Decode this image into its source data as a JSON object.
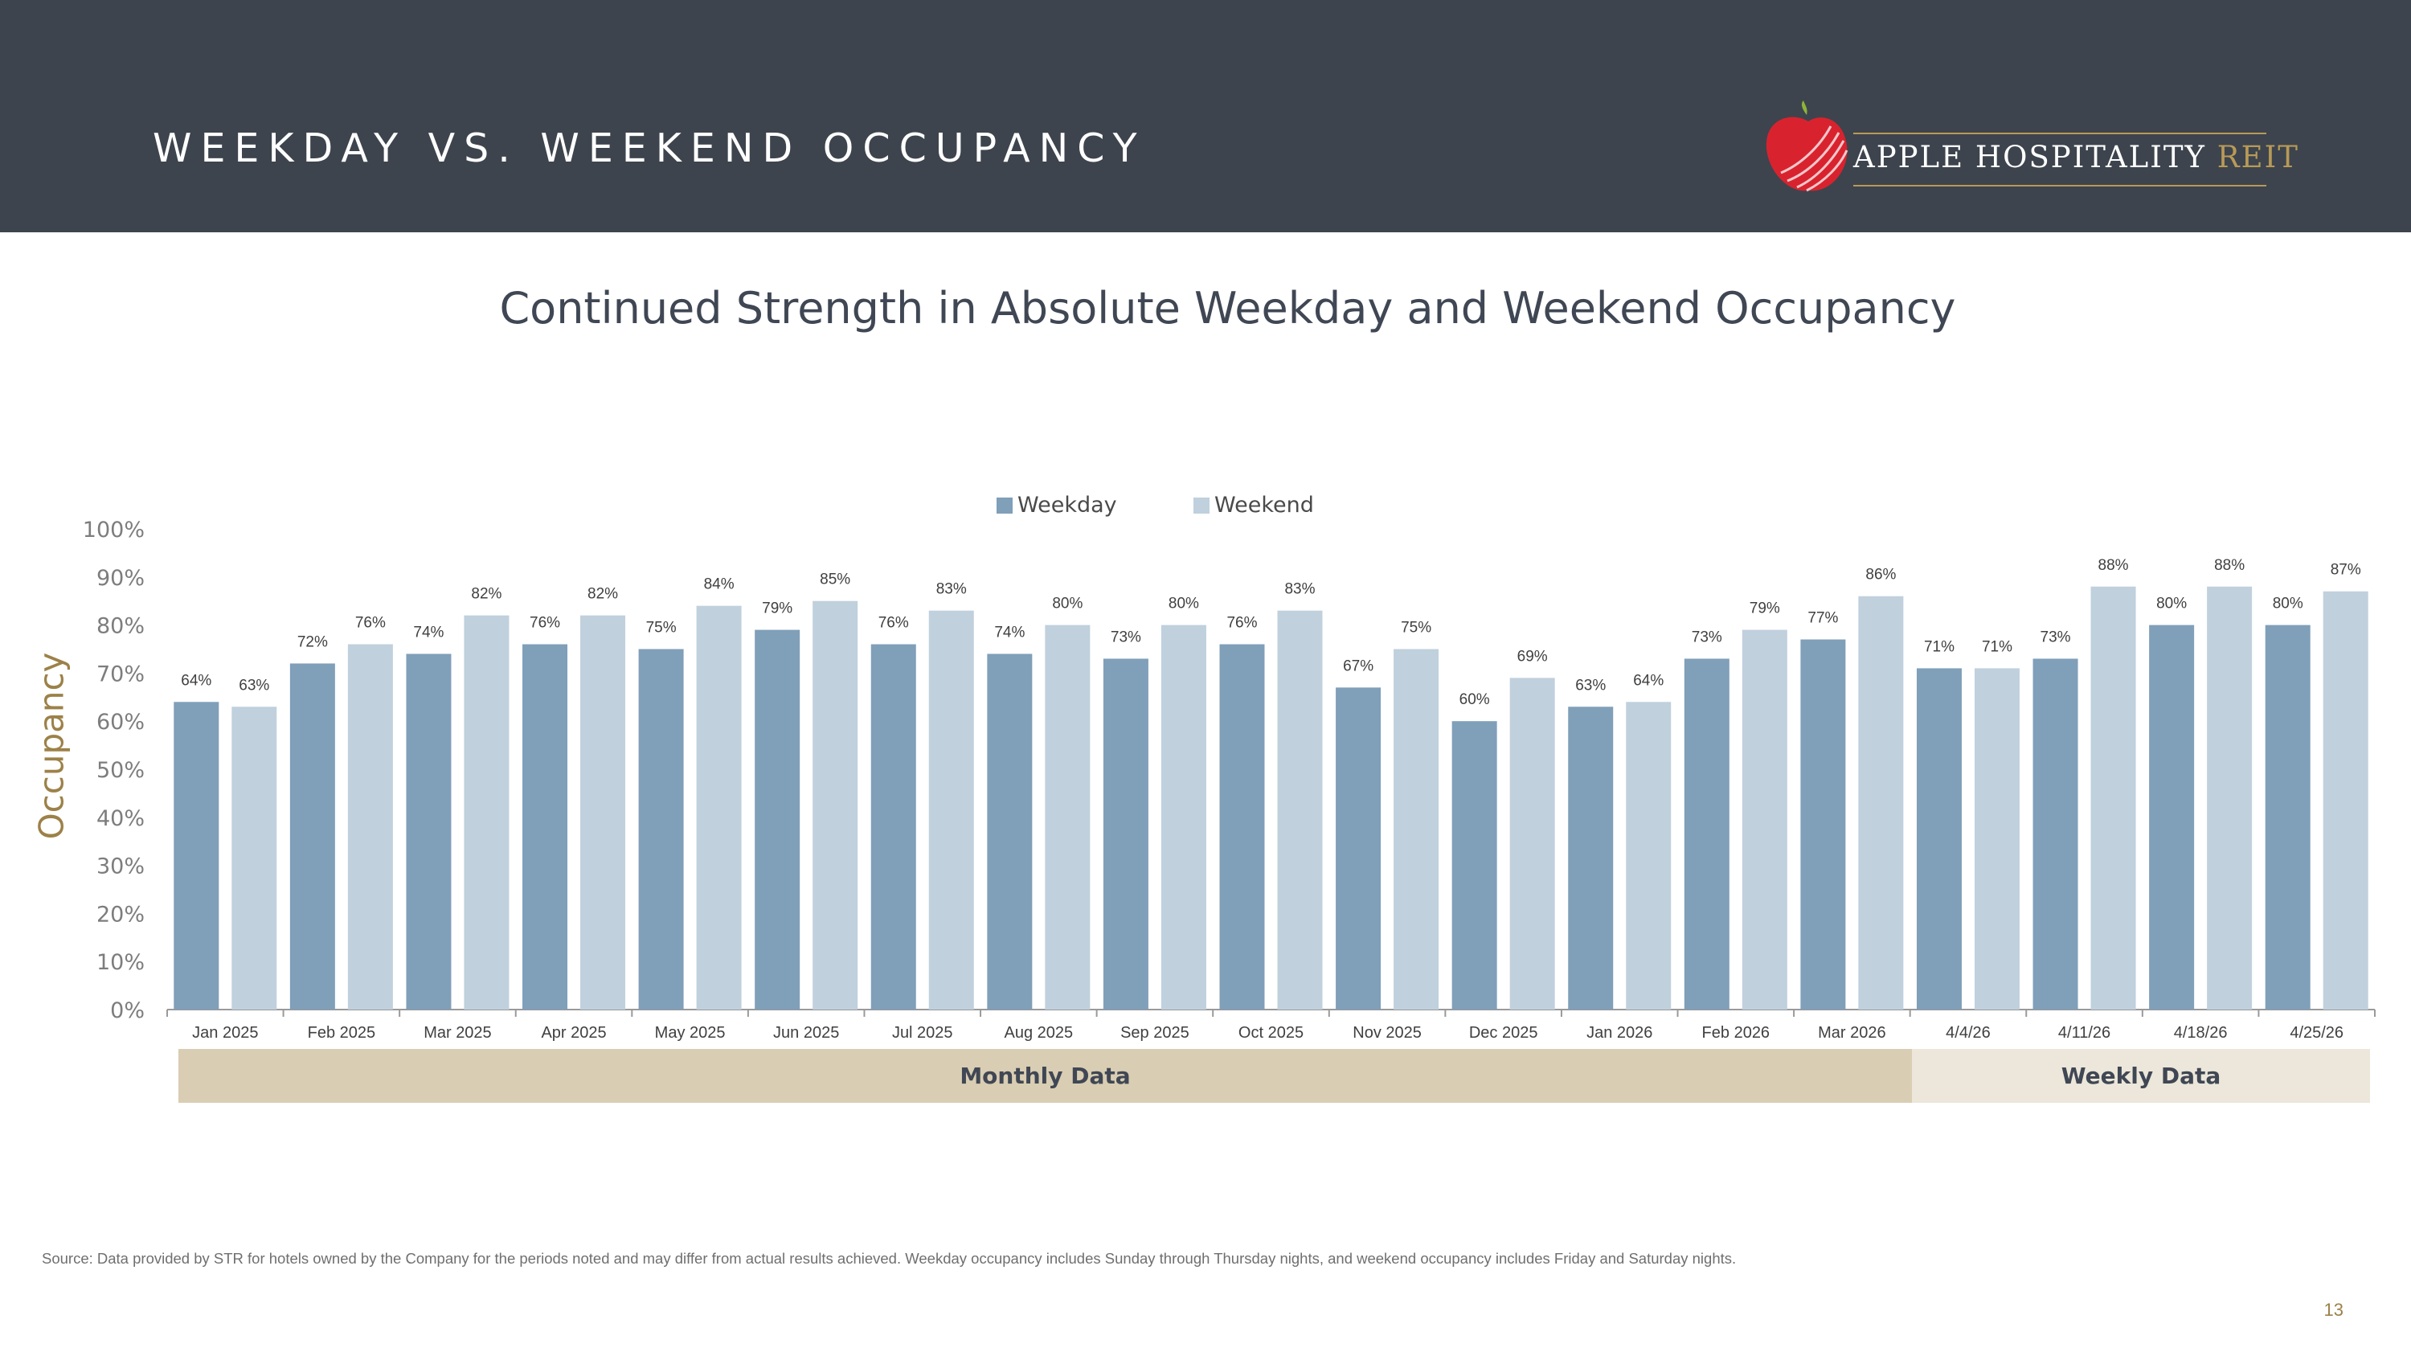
{
  "header": {
    "title": "WEEKDAY VS. WEEKEND OCCUPANCY"
  },
  "logo": {
    "name": "APPLE HOSPITALITY",
    "suffix": "REIT"
  },
  "subtitle": "Continued Strength in Absolute Weekday and Weekend Occupancy",
  "bands": {
    "monthly": "Monthly Data",
    "weekly": "Weekly Data"
  },
  "source": "Source:  Data provided by STR for hotels owned by the Company for the periods noted and may differ from actual results achieved. Weekday occupancy includes Sunday through Thursday nights, and weekend occupancy includes Friday and Saturday nights.",
  "page_number": "13",
  "colors": {
    "header_bg": "#3d444d",
    "weekday": "#809fb9",
    "weekend": "#c0d0dd",
    "accent_gold": "#9c8148",
    "monthly_band": "#d9cdb3",
    "weekly_band": "#ece7da"
  },
  "chart_data": {
    "type": "bar",
    "ylabel": "Occupancy",
    "ylim": [
      0,
      100
    ],
    "y_ticks": [
      "0%",
      "10%",
      "20%",
      "30%",
      "40%",
      "50%",
      "60%",
      "70%",
      "80%",
      "90%",
      "100%"
    ],
    "legend_position": "top-center",
    "grid": false,
    "categories": [
      "Jan 2025",
      "Feb 2025",
      "Mar 2025",
      "Apr 2025",
      "May 2025",
      "Jun 2025",
      "Jul 2025",
      "Aug 2025",
      "Sep 2025",
      "Oct 2025",
      "Nov 2025",
      "Dec 2025",
      "Jan 2026",
      "Feb 2026",
      "Mar 2026",
      "4/4/26",
      "4/11/26",
      "4/18/26",
      "4/25/26"
    ],
    "series": [
      {
        "name": "Weekday",
        "color": "#809fb9",
        "values": [
          64,
          72,
          74,
          76,
          75,
          79,
          76,
          74,
          73,
          76,
          67,
          60,
          63,
          73,
          77,
          71,
          73,
          80,
          80
        ]
      },
      {
        "name": "Weekend",
        "color": "#c0d0dd",
        "values": [
          63,
          76,
          82,
          82,
          84,
          85,
          83,
          80,
          80,
          83,
          75,
          69,
          64,
          79,
          86,
          71,
          88,
          88,
          87
        ]
      }
    ]
  }
}
